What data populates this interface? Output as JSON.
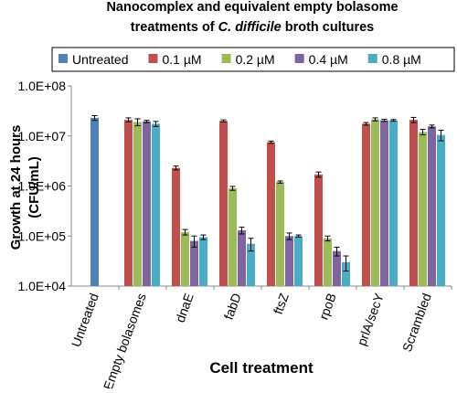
{
  "chart_data": {
    "type": "bar",
    "title": [
      "Nanocomplex and equivalent empty bolasome",
      "treatments of",
      "C. difficile",
      "broth cultures"
    ],
    "ylabel": [
      "Growth at 24 hours",
      "(CFU/mL)"
    ],
    "xlabel": "Cell treatment",
    "log_scale": true,
    "legend": "top",
    "categories": [
      "Untreated",
      "Empty bolasomes",
      "dnaE",
      "fabD",
      "ftsZ",
      "rpoB",
      "prlA/secY",
      "Scrambled"
    ],
    "series": [
      {
        "name": "Untreated",
        "color": "#4f81bd",
        "values": [
          23000000,
          null,
          null,
          null,
          null,
          null,
          null,
          null
        ],
        "errors": [
          2500000,
          null,
          null,
          null,
          null,
          null,
          null,
          null
        ]
      },
      {
        "name": "0.1 µM",
        "color": "#c0504d",
        "values": [
          null,
          21000000,
          2300000,
          20000000,
          7500000,
          1700000,
          17500000,
          21000000
        ],
        "errors": [
          null,
          2000000,
          200000,
          1000000,
          400000,
          200000,
          1000000,
          2500000
        ]
      },
      {
        "name": "0.2 µM",
        "color": "#9bbb59",
        "values": [
          null,
          19000000,
          120000,
          900000,
          1200000,
          90000,
          21500000,
          12000000
        ],
        "errors": [
          null,
          3000000,
          15000,
          80000,
          60000,
          10000,
          1500000,
          1500000
        ]
      },
      {
        "name": "0.4 µM",
        "color": "#8064a2",
        "values": [
          null,
          19500000,
          80000,
          130000,
          100000,
          50000,
          20500000,
          15500000
        ],
        "errors": [
          null,
          1000000,
          20000,
          20000,
          15000,
          10000,
          1000000,
          1000000
        ]
      },
      {
        "name": "0.8 µM",
        "color": "#4bacc6",
        "values": [
          null,
          17500000,
          95000,
          70000,
          100000,
          30000,
          20500000,
          10500000
        ],
        "errors": [
          null,
          2000000,
          10000,
          20000,
          5000,
          10000,
          800000,
          2500000
        ]
      }
    ],
    "ylim": [
      10000,
      100000000
    ],
    "yticks": [
      {
        "value": 10000,
        "label": "1.0E+04"
      },
      {
        "value": 100000,
        "label": "1.0E+05"
      },
      {
        "value": 1000000,
        "label": "1.0E+06"
      },
      {
        "value": 10000000,
        "label": "1.0E+07"
      },
      {
        "value": 100000000,
        "label": "1.0E+08"
      }
    ]
  }
}
